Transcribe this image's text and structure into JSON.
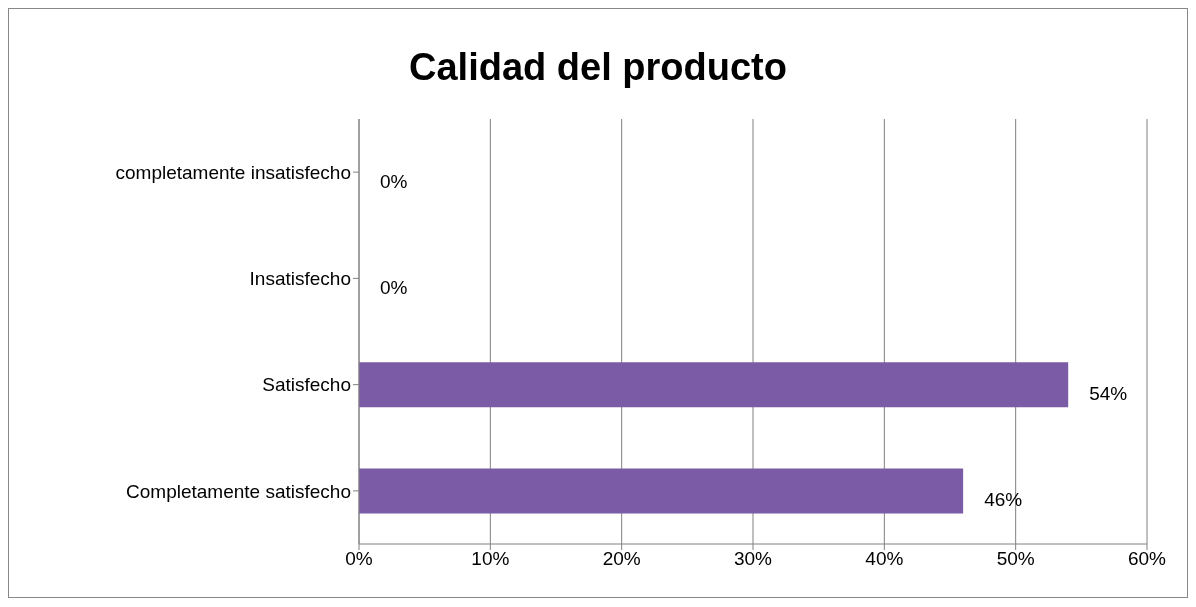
{
  "chart_data": {
    "type": "bar",
    "orientation": "horizontal",
    "title": "Calidad del producto",
    "categories": [
      "completamente insatisfecho",
      "Insatisfecho",
      "Satisfecho",
      "Completamente satisfecho"
    ],
    "values": [
      0,
      0,
      54,
      46
    ],
    "value_labels": [
      "0%",
      "0%",
      "54%",
      "46%"
    ],
    "color": "#7b5aa6",
    "xlim": [
      0,
      60
    ],
    "xticks": [
      {
        "value": 0,
        "label": "0%"
      },
      {
        "value": 10,
        "label": "10%"
      },
      {
        "value": 20,
        "label": "20%"
      },
      {
        "value": 30,
        "label": "30%"
      },
      {
        "value": 40,
        "label": "40%"
      },
      {
        "value": 50,
        "label": "50%"
      },
      {
        "value": 60,
        "label": "60%"
      }
    ],
    "grid": "x"
  }
}
